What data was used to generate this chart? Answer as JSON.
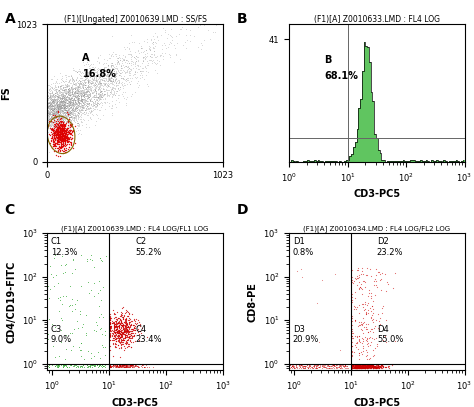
{
  "fig_width": 4.74,
  "fig_height": 4.07,
  "dpi": 100,
  "panel_A": {
    "title": "(F1)[Ungated] Z0010639.LMD : SS/FS",
    "xlabel": "SS",
    "ylabel": "FS",
    "xlim": [
      0,
      1023
    ],
    "ylim": [
      0,
      1023
    ]
  },
  "panel_B": {
    "title": "(F1)[A] Z0010633.LMD : FL4 LOG",
    "xlabel": "CD3-PC5",
    "ytick_max": 41
  },
  "panel_C": {
    "title": "(F1)[A] Z0010639.LMD : FL4 LOG/FL1 LOG",
    "xlabel": "CD3-PC5",
    "ylabel": "CD4/CD19-FITC",
    "q_labels": [
      "C1",
      "C2",
      "C3",
      "C4"
    ],
    "q_pcts": [
      "12.3%",
      "55.2%",
      "9.0%",
      "23.4%"
    ]
  },
  "panel_D": {
    "title": "(F1)[A] Z0010634.LMD : FL4 LOG/FL2 LOG",
    "xlabel": "CD3-PC5",
    "ylabel": "CD8-PE",
    "q_labels": [
      "D1",
      "D2",
      "D3",
      "D4"
    ],
    "q_pcts": [
      "0.8%",
      "23.2%",
      "20.9%",
      "55.0%"
    ]
  },
  "colors": {
    "gray_dots": "#909090",
    "red_gate_fill": "#dd0000",
    "red_gate_edge": "#886600",
    "green_hist_fill": "#44bb44",
    "green_hist_edge": "#000000",
    "red_scatter": "#cc0000",
    "green_scatter": "#33aa33",
    "background": "#ffffff"
  }
}
